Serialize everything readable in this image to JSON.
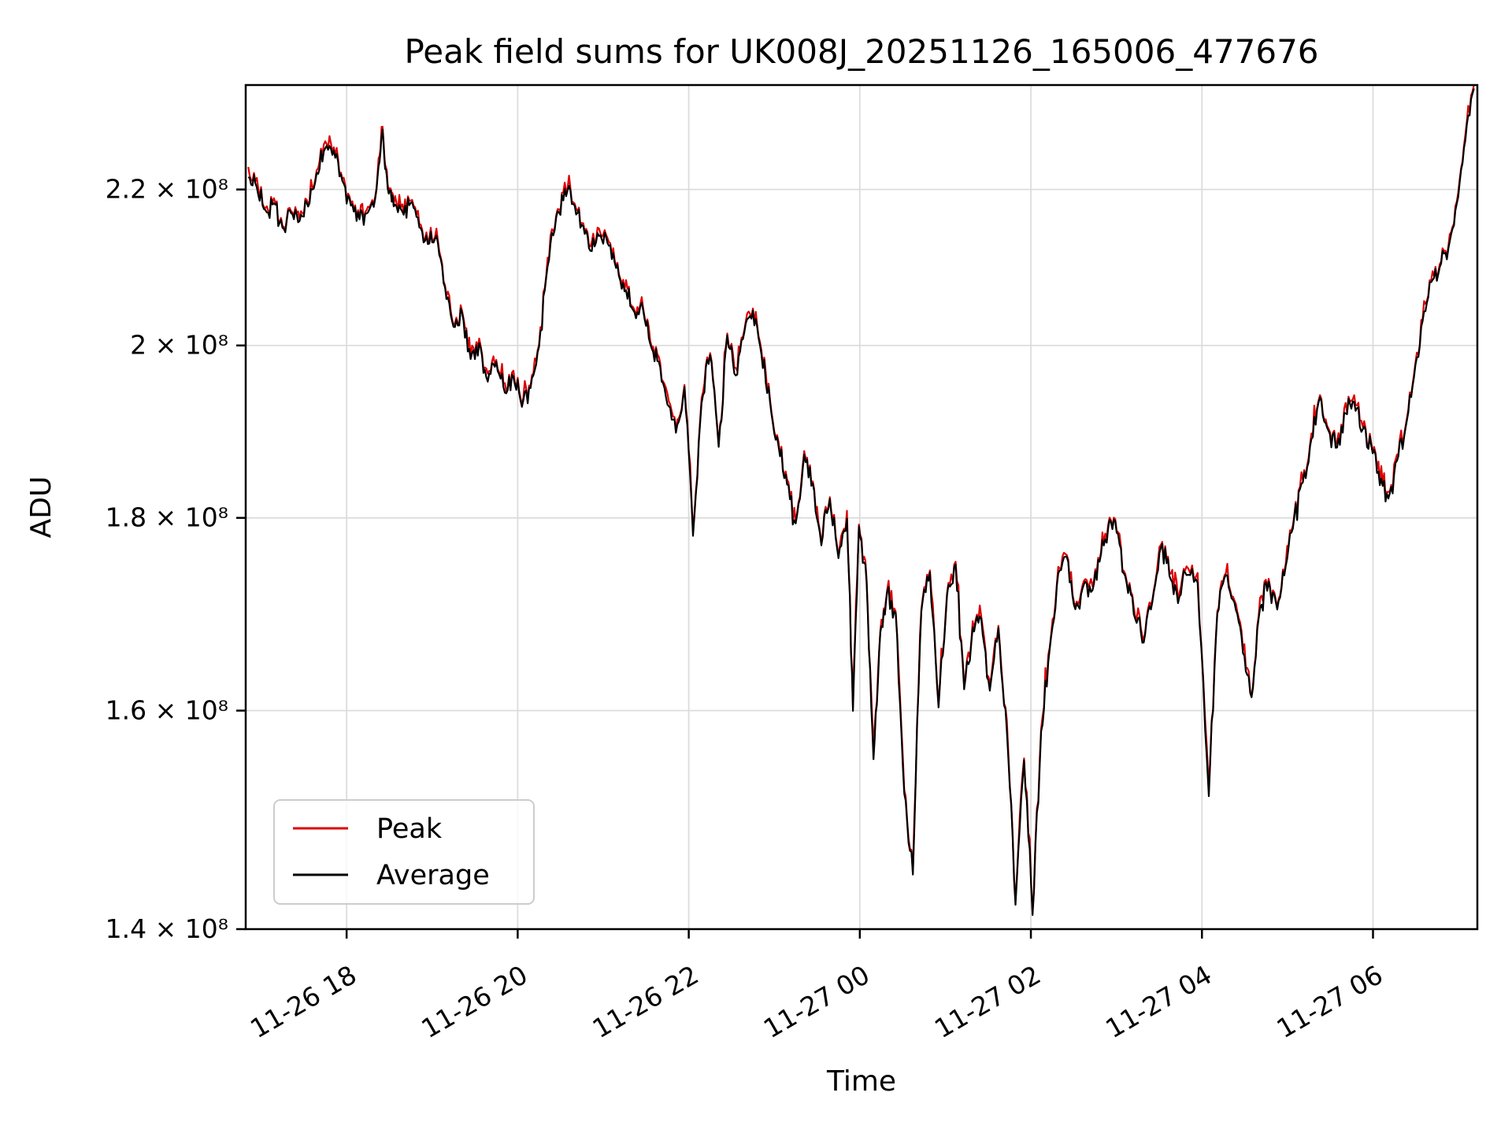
{
  "chart_data": {
    "type": "line",
    "title": "Peak field sums for UK008J_20251126_165006_477676",
    "xlabel": "Time",
    "ylabel": "ADU",
    "yscale": "log",
    "grid": true,
    "legend_position": "lower left",
    "ylim": [
      140000000,
      234500000
    ],
    "xlim_hours": [
      16.82,
      31.22
    ],
    "yticks": [
      {
        "value": 140000000,
        "label": "1.4 × 10⁸"
      },
      {
        "value": 160000000,
        "label": "1.6 × 10⁸"
      },
      {
        "value": 180000000,
        "label": "1.8 × 10⁸"
      },
      {
        "value": 200000000,
        "label": "2 × 10⁸"
      },
      {
        "value": 220000000,
        "label": "2.2 × 10⁸"
      }
    ],
    "xticks": [
      {
        "hour": 18,
        "label": "11-26 18"
      },
      {
        "hour": 20,
        "label": "11-26 20"
      },
      {
        "hour": 22,
        "label": "11-26 22"
      },
      {
        "hour": 24,
        "label": "11-27 00"
      },
      {
        "hour": 26,
        "label": "11-27 02"
      },
      {
        "hour": 28,
        "label": "11-27 04"
      },
      {
        "hour": 30,
        "label": "11-27 06"
      }
    ],
    "series": [
      {
        "name": "Peak",
        "color": "#dd0000"
      },
      {
        "name": "Average",
        "color": "#000000"
      }
    ],
    "units": "values in units of 1e8 ADU; hours counted from 11-26 00:00",
    "peak_offset_ratio": 1.0012,
    "average_anchors_1e8": [
      [
        16.85,
        2.22
      ],
      [
        16.95,
        2.2
      ],
      [
        17.05,
        2.17
      ],
      [
        17.15,
        2.18
      ],
      [
        17.25,
        2.15
      ],
      [
        17.35,
        2.17
      ],
      [
        17.45,
        2.16
      ],
      [
        17.55,
        2.18
      ],
      [
        17.65,
        2.22
      ],
      [
        17.75,
        2.26
      ],
      [
        17.85,
        2.25
      ],
      [
        17.95,
        2.21
      ],
      [
        18.05,
        2.18
      ],
      [
        18.15,
        2.16
      ],
      [
        18.25,
        2.17
      ],
      [
        18.35,
        2.2
      ],
      [
        18.42,
        2.28
      ],
      [
        18.48,
        2.2
      ],
      [
        18.55,
        2.18
      ],
      [
        18.65,
        2.17
      ],
      [
        18.75,
        2.18
      ],
      [
        18.85,
        2.15
      ],
      [
        18.95,
        2.13
      ],
      [
        19.05,
        2.14
      ],
      [
        19.15,
        2.07
      ],
      [
        19.25,
        2.02
      ],
      [
        19.35,
        2.04
      ],
      [
        19.45,
        1.98
      ],
      [
        19.55,
        2.0
      ],
      [
        19.65,
        1.96
      ],
      [
        19.75,
        1.98
      ],
      [
        19.85,
        1.94
      ],
      [
        19.95,
        1.96
      ],
      [
        20.05,
        1.93
      ],
      [
        20.15,
        1.95
      ],
      [
        20.25,
        2.0
      ],
      [
        20.35,
        2.1
      ],
      [
        20.45,
        2.16
      ],
      [
        20.55,
        2.2
      ],
      [
        20.65,
        2.18
      ],
      [
        20.75,
        2.15
      ],
      [
        20.85,
        2.12
      ],
      [
        20.95,
        2.14
      ],
      [
        21.05,
        2.13
      ],
      [
        21.15,
        2.1
      ],
      [
        21.25,
        2.07
      ],
      [
        21.35,
        2.04
      ],
      [
        21.45,
        2.05
      ],
      [
        21.55,
        2.0
      ],
      [
        21.65,
        1.98
      ],
      [
        21.75,
        1.93
      ],
      [
        21.85,
        1.9
      ],
      [
        21.95,
        1.95
      ],
      [
        22.05,
        1.78
      ],
      [
        22.15,
        1.93
      ],
      [
        22.25,
        1.99
      ],
      [
        22.35,
        1.88
      ],
      [
        22.45,
        2.01
      ],
      [
        22.55,
        1.96
      ],
      [
        22.65,
        2.02
      ],
      [
        22.75,
        2.04
      ],
      [
        22.85,
        1.99
      ],
      [
        22.95,
        1.93
      ],
      [
        23.05,
        1.88
      ],
      [
        23.15,
        1.84
      ],
      [
        23.25,
        1.79
      ],
      [
        23.35,
        1.87
      ],
      [
        23.45,
        1.84
      ],
      [
        23.55,
        1.77
      ],
      [
        23.65,
        1.82
      ],
      [
        23.75,
        1.76
      ],
      [
        23.85,
        1.8
      ],
      [
        23.92,
        1.6
      ],
      [
        23.99,
        1.79
      ],
      [
        24.08,
        1.73
      ],
      [
        24.16,
        1.55
      ],
      [
        24.24,
        1.68
      ],
      [
        24.32,
        1.72
      ],
      [
        24.42,
        1.7
      ],
      [
        24.52,
        1.52
      ],
      [
        24.62,
        1.45
      ],
      [
        24.72,
        1.7
      ],
      [
        24.82,
        1.74
      ],
      [
        24.92,
        1.6
      ],
      [
        25.02,
        1.72
      ],
      [
        25.12,
        1.75
      ],
      [
        25.22,
        1.62
      ],
      [
        25.32,
        1.68
      ],
      [
        25.42,
        1.69
      ],
      [
        25.52,
        1.62
      ],
      [
        25.62,
        1.68
      ],
      [
        25.72,
        1.58
      ],
      [
        25.82,
        1.42
      ],
      [
        25.92,
        1.55
      ],
      [
        26.02,
        1.41
      ],
      [
        26.12,
        1.58
      ],
      [
        26.22,
        1.66
      ],
      [
        26.32,
        1.74
      ],
      [
        26.42,
        1.76
      ],
      [
        26.52,
        1.7
      ],
      [
        26.62,
        1.73
      ],
      [
        26.72,
        1.72
      ],
      [
        26.82,
        1.76
      ],
      [
        26.92,
        1.8
      ],
      [
        27.02,
        1.78
      ],
      [
        27.12,
        1.73
      ],
      [
        27.22,
        1.69
      ],
      [
        27.32,
        1.67
      ],
      [
        27.42,
        1.71
      ],
      [
        27.52,
        1.77
      ],
      [
        27.62,
        1.74
      ],
      [
        27.72,
        1.71
      ],
      [
        27.82,
        1.74
      ],
      [
        27.95,
        1.73
      ],
      [
        28.08,
        1.52
      ],
      [
        28.18,
        1.7
      ],
      [
        28.28,
        1.74
      ],
      [
        28.38,
        1.71
      ],
      [
        28.48,
        1.66
      ],
      [
        28.58,
        1.61
      ],
      [
        28.68,
        1.7
      ],
      [
        28.78,
        1.73
      ],
      [
        28.88,
        1.7
      ],
      [
        28.98,
        1.75
      ],
      [
        29.08,
        1.8
      ],
      [
        29.18,
        1.84
      ],
      [
        29.28,
        1.89
      ],
      [
        29.38,
        1.94
      ],
      [
        29.48,
        1.9
      ],
      [
        29.58,
        1.88
      ],
      [
        29.68,
        1.92
      ],
      [
        29.78,
        1.93
      ],
      [
        29.88,
        1.9
      ],
      [
        29.98,
        1.88
      ],
      [
        30.08,
        1.84
      ],
      [
        30.18,
        1.82
      ],
      [
        30.28,
        1.86
      ],
      [
        30.38,
        1.9
      ],
      [
        30.48,
        1.96
      ],
      [
        30.58,
        2.03
      ],
      [
        30.68,
        2.08
      ],
      [
        30.78,
        2.1
      ],
      [
        30.88,
        2.12
      ],
      [
        30.98,
        2.18
      ],
      [
        31.08,
        2.27
      ],
      [
        31.18,
        2.34
      ]
    ]
  },
  "style": {
    "grid_color": "#dcdcdc",
    "spine_color": "#000000",
    "background": "#ffffff",
    "legend_border": "#cccccc"
  }
}
